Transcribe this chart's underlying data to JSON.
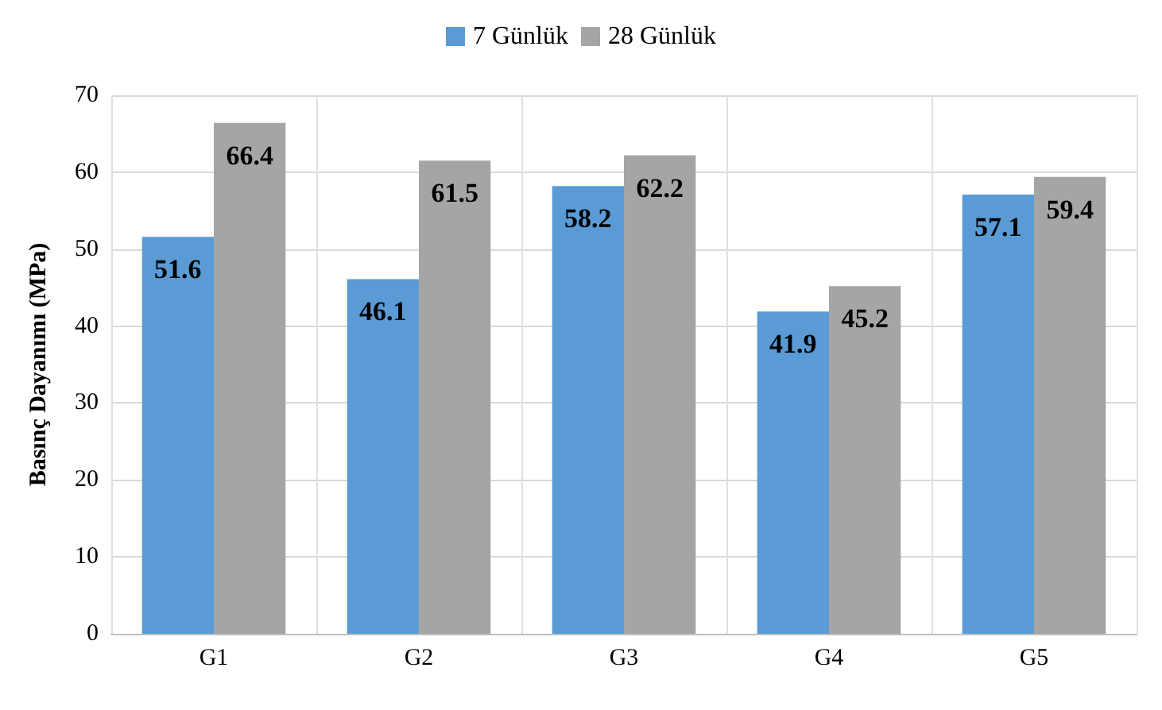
{
  "chart_data": {
    "type": "bar",
    "ylabel": "Basınç Dayanımı (MPa)",
    "categories": [
      "G1",
      "G2",
      "G3",
      "G4",
      "G5"
    ],
    "series": [
      {
        "name": "7 Günlük",
        "color": "#5b9bd5",
        "values": [
          51.6,
          46.1,
          58.2,
          41.9,
          57.1
        ]
      },
      {
        "name": "28 Günlük",
        "color": "#a5a5a5",
        "values": [
          66.4,
          61.5,
          62.2,
          45.2,
          59.4
        ]
      }
    ],
    "ylim": [
      0,
      70
    ],
    "yticks": [
      0,
      10,
      20,
      30,
      40,
      50,
      60,
      70
    ],
    "grid": true,
    "legend": "top",
    "data_labels": true
  }
}
